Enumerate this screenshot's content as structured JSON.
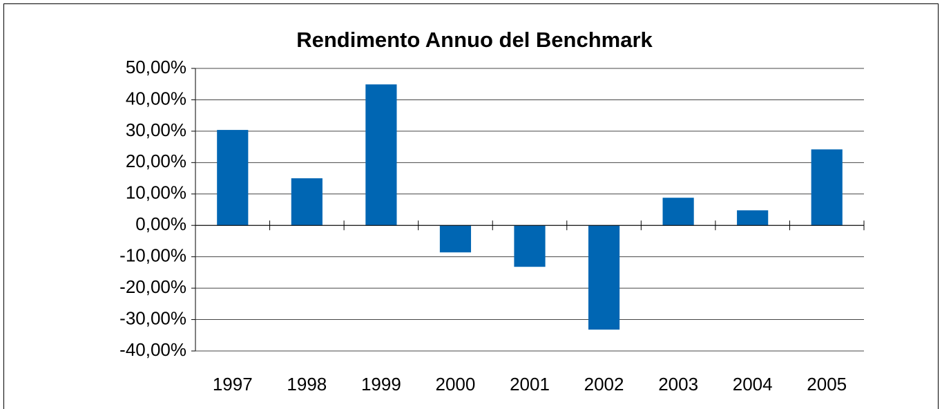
{
  "chart_data": {
    "type": "bar",
    "title": "Rendimento Annuo del Benchmark",
    "categories": [
      "1997",
      "1998",
      "1999",
      "2000",
      "2001",
      "2002",
      "2003",
      "2004",
      "2005"
    ],
    "values": [
      30.4,
      15.0,
      44.9,
      -8.6,
      -13.2,
      -33.2,
      8.8,
      4.8,
      24.2
    ],
    "color": "#0066b3",
    "ylim": [
      -40,
      50
    ],
    "yticks": [
      {
        "value": 50,
        "label": "50,00%"
      },
      {
        "value": 40,
        "label": "40,00%"
      },
      {
        "value": 30,
        "label": "30,00%"
      },
      {
        "value": 20,
        "label": "20,00%"
      },
      {
        "value": 10,
        "label": "10,00%"
      },
      {
        "value": 0,
        "label": "0,00%"
      },
      {
        "value": -10,
        "label": "-10,00%"
      },
      {
        "value": -20,
        "label": "-20,00%"
      },
      {
        "value": -30,
        "label": "-30,00%"
      },
      {
        "value": -40,
        "label": "-40,00%"
      }
    ],
    "grid": true
  }
}
